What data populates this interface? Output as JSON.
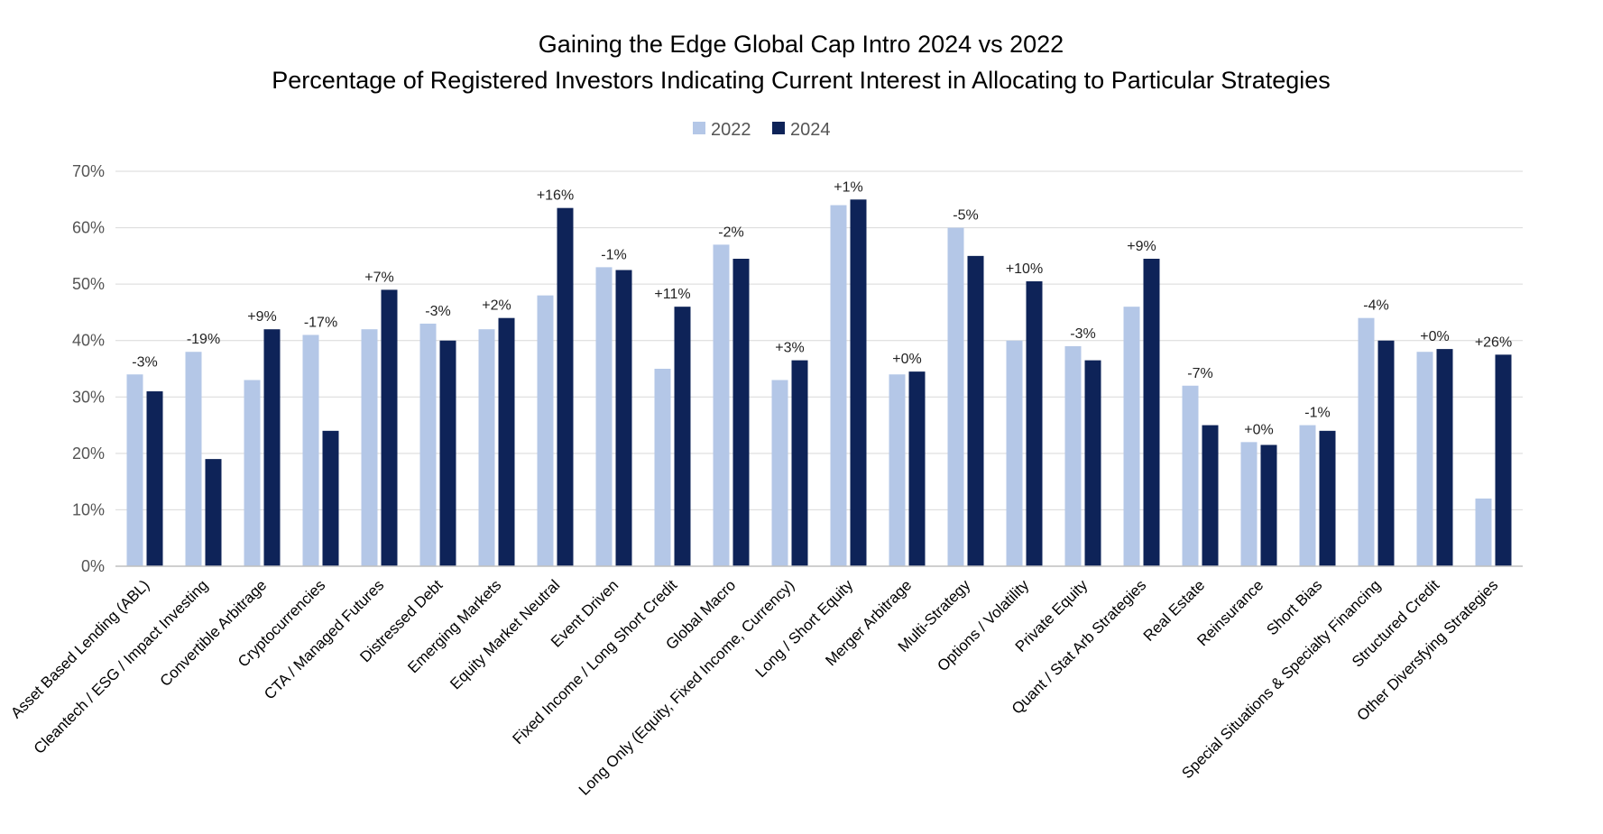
{
  "chart_data": {
    "type": "bar",
    "title": "Gaining the Edge Global Cap Intro 2024 vs 2022",
    "subtitle": "Percentage of Registered Investors Indicating Current Interest in Allocating to Particular Strategies",
    "xlabel": "",
    "ylabel": "",
    "ylim": [
      0,
      70
    ],
    "yticks": [
      "0%",
      "10%",
      "20%",
      "30%",
      "40%",
      "50%",
      "60%",
      "70%"
    ],
    "grid": true,
    "legend_position": "top-center",
    "categories": [
      "Asset Based Lending (ABL)",
      "Cleantech / ESG / Impact Investing",
      "Convertible Arbitrage",
      "Cryptocurrencies",
      "CTA / Managed Futures",
      "Distressed Debt",
      "Emerging Markets",
      "Equity Market Neutral",
      "Event Driven",
      "Fixed Income / Long Short Credit",
      "Global Macro",
      "Long Only (Equity, Fixed Income, Currency)",
      "Long / Short Equity",
      "Merger Arbitrage",
      "Multi-Strategy",
      "Options / Volatility",
      "Private Equity",
      "Quant / Stat Arb Strategies",
      "Real Estate",
      "Reinsurance",
      "Short Bias",
      "Special Situations & Specialty Financing",
      "Structured Credit",
      "Other Diversfying Strategies"
    ],
    "series": [
      {
        "name": "2022",
        "color": "#b4c7e7",
        "values": [
          34,
          38,
          33,
          41,
          42,
          43,
          42,
          48,
          53,
          35,
          57,
          33,
          64,
          34,
          60,
          40,
          39,
          46,
          32,
          22,
          25,
          44,
          38,
          12
        ]
      },
      {
        "name": "2024",
        "color": "#0e2358",
        "values": [
          31,
          19,
          42,
          24,
          49,
          40,
          44,
          63.5,
          52.5,
          46,
          54.5,
          36.5,
          65,
          34.5,
          55,
          50.5,
          36.5,
          54.5,
          25,
          21.5,
          24,
          40,
          38.5,
          37.5
        ]
      }
    ],
    "change_labels": [
      "-3%",
      "-19%",
      "+9%",
      "-17%",
      "+7%",
      "-3%",
      "+2%",
      "+16%",
      "-1%",
      "+11%",
      "-2%",
      "+3%",
      "+1%",
      "+0%",
      "-5%",
      "+10%",
      "-3%",
      "+9%",
      "-7%",
      "+0%",
      "-1%",
      "-4%",
      "+0%",
      "+26%"
    ]
  }
}
